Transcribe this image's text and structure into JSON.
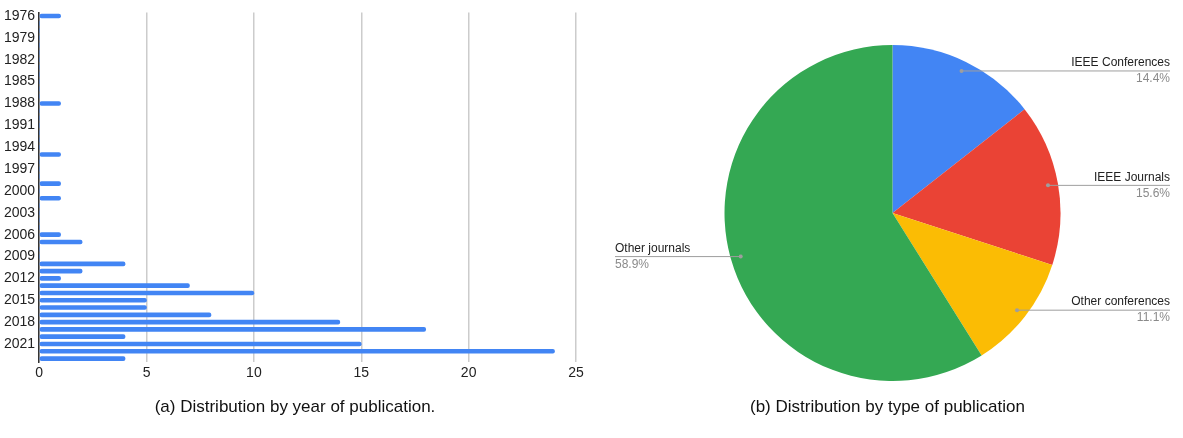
{
  "chart_data": [
    {
      "type": "bar",
      "orientation": "horizontal",
      "annotations": [
        "(a) Distribution by year of publication."
      ],
      "categories": [
        "1976",
        null,
        null,
        "1979",
        null,
        null,
        "1982",
        null,
        null,
        "1985",
        null,
        null,
        "1988",
        null,
        null,
        "1991",
        null,
        null,
        "1994",
        null,
        null,
        "1997",
        null,
        null,
        "2000",
        null,
        null,
        "2003",
        null,
        null,
        "2006",
        null,
        null,
        "2009",
        null,
        null,
        "2012",
        null,
        null,
        "2015",
        null,
        null,
        "2018",
        null,
        null,
        "2021",
        null,
        null
      ],
      "values": [
        1,
        0,
        0,
        0,
        0,
        0,
        0,
        0,
        0,
        0,
        0,
        0,
        1,
        0,
        0,
        0,
        0,
        0,
        0,
        1,
        0,
        0,
        0,
        1,
        0,
        1,
        0,
        0,
        0,
        0,
        1,
        2,
        0,
        0,
        4,
        2,
        1,
        7,
        10,
        5,
        5,
        8,
        14,
        18,
        4,
        15,
        24,
        4
      ],
      "color": "#4285f4",
      "xlim": [
        0,
        25
      ],
      "xticks": [
        0,
        5,
        10,
        15,
        20,
        25
      ],
      "grid": "x",
      "legend": false
    },
    {
      "type": "pie",
      "annotations": [
        "(b) Distribution by type of publication"
      ],
      "categories": [
        "IEEE Conferences",
        "IEEE Journals",
        "Other conferences",
        "Other journals"
      ],
      "values": [
        14.4,
        15.6,
        11.1,
        58.9
      ],
      "value_labels": [
        "14.4%",
        "15.6%",
        "11.1%",
        "58.9%"
      ],
      "colors": [
        "#4285f4",
        "#ea4335",
        "#fbbc04",
        "#34a853"
      ],
      "legend": false
    }
  ]
}
